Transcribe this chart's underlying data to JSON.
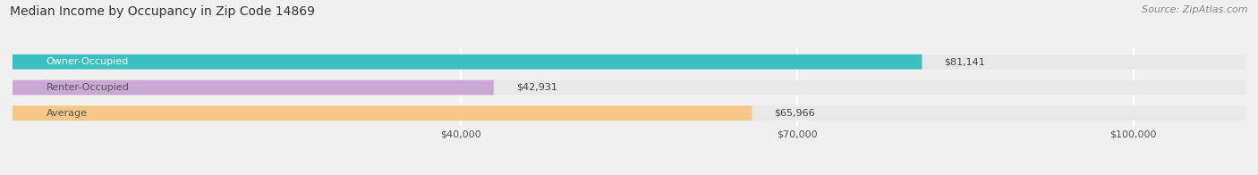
{
  "title": "Median Income by Occupancy in Zip Code 14869",
  "source": "Source: ZipAtlas.com",
  "categories": [
    "Owner-Occupied",
    "Renter-Occupied",
    "Average"
  ],
  "values": [
    81141,
    42931,
    65966
  ],
  "bar_colors": [
    "#3bbfbf",
    "#c9a8d4",
    "#f5c888"
  ],
  "bar_bg_color": "#e8e8e8",
  "xlim": [
    0,
    110000
  ],
  "xticks": [
    40000,
    70000,
    100000
  ],
  "xtick_labels": [
    "$40,000",
    "$70,000",
    "$100,000"
  ],
  "title_fontsize": 10,
  "source_fontsize": 8,
  "bar_label_fontsize": 8,
  "tick_fontsize": 8,
  "category_fontsize": 8,
  "bar_height": 0.58,
  "background_color": "#f0f0f0",
  "grid_color": "#ffffff",
  "value_labels": [
    "$81,141",
    "$42,931",
    "$65,966"
  ],
  "cat_text_colors": [
    "#ffffff",
    "#555555",
    "#555555"
  ]
}
